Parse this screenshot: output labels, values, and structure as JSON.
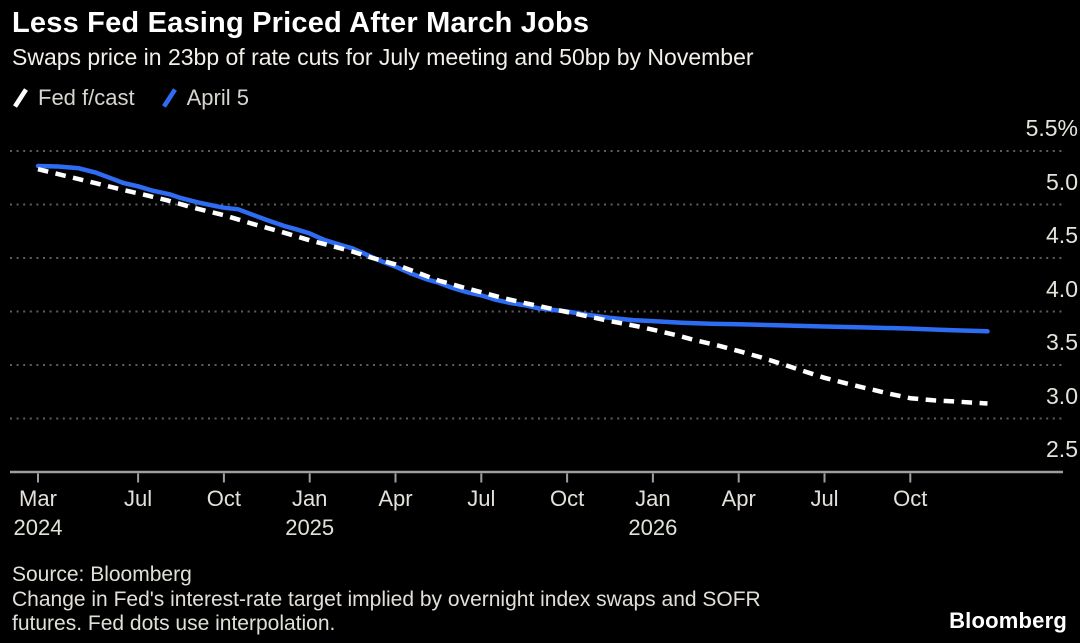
{
  "chart_data": {
    "type": "line",
    "title": "Less Fed Easing Priced After March Jobs",
    "subtitle": "Swaps price in 23bp of rate cuts for July meeting and 50bp by November",
    "legend_position": "top-left",
    "grid": "horizontal-dotted",
    "background": "#000000",
    "timeline": {
      "start": "mid-Mar 2024",
      "end": "Dec 2026",
      "t_unit": "months since mid-March 2024"
    },
    "x_axis": {
      "ticks": [
        {
          "label": "Mar",
          "year": "2024",
          "t": 0
        },
        {
          "label": "Jul",
          "t": 3.5
        },
        {
          "label": "Oct",
          "t": 6.5
        },
        {
          "label": "Jan",
          "year": "2025",
          "t": 9.5
        },
        {
          "label": "Apr",
          "t": 12.5
        },
        {
          "label": "Jul",
          "t": 15.5
        },
        {
          "label": "Oct",
          "t": 18.5
        },
        {
          "label": "Jan",
          "year": "2026",
          "t": 21.5
        },
        {
          "label": "Apr",
          "t": 24.5
        },
        {
          "label": "Jul",
          "t": 27.5
        },
        {
          "label": "Oct",
          "t": 30.5
        }
      ]
    },
    "y_axis": {
      "unit": "%",
      "range": [
        2.5,
        5.5
      ],
      "ticks": [
        {
          "label": "5.5%",
          "value": 5.5
        },
        {
          "label": "5.0",
          "value": 5.0
        },
        {
          "label": "4.5",
          "value": 4.5
        },
        {
          "label": "4.0",
          "value": 4.0
        },
        {
          "label": "3.5",
          "value": 3.5
        },
        {
          "label": "3.0",
          "value": 3.0
        },
        {
          "label": "2.5",
          "value": 2.5
        }
      ]
    },
    "series": [
      {
        "name": "Fed f/cast",
        "color": "#ffffff",
        "style": "dashed",
        "points": [
          [
            0,
            5.33
          ],
          [
            1,
            5.265
          ],
          [
            2,
            5.2
          ],
          [
            3,
            5.135
          ],
          [
            3.5,
            5.105
          ],
          [
            4.5,
            5.04
          ],
          [
            5.5,
            4.965
          ],
          [
            6.5,
            4.9
          ],
          [
            7.5,
            4.82
          ],
          [
            8.5,
            4.745
          ],
          [
            9.5,
            4.665
          ],
          [
            10.3,
            4.61
          ],
          [
            11,
            4.56
          ],
          [
            11.7,
            4.5
          ],
          [
            12.5,
            4.44
          ],
          [
            13.2,
            4.37
          ],
          [
            14,
            4.29
          ],
          [
            14.8,
            4.23
          ],
          [
            15.5,
            4.18
          ],
          [
            16.2,
            4.13
          ],
          [
            17,
            4.08
          ],
          [
            17.8,
            4.035
          ],
          [
            18.5,
            3.995
          ],
          [
            19.3,
            3.95
          ],
          [
            20,
            3.91
          ],
          [
            20.8,
            3.87
          ],
          [
            21.5,
            3.83
          ],
          [
            22.3,
            3.78
          ],
          [
            23,
            3.73
          ],
          [
            23.8,
            3.68
          ],
          [
            24.5,
            3.63
          ],
          [
            25.3,
            3.57
          ],
          [
            26,
            3.51
          ],
          [
            26.8,
            3.44
          ],
          [
            27.5,
            3.38
          ],
          [
            28.3,
            3.325
          ],
          [
            29,
            3.28
          ],
          [
            29.8,
            3.23
          ],
          [
            30.5,
            3.19
          ],
          [
            31.3,
            3.17
          ],
          [
            32,
            3.16
          ],
          [
            32.6,
            3.15
          ],
          [
            33.2,
            3.14
          ]
        ]
      },
      {
        "name": "April 5",
        "color": "#2e6cf2",
        "style": "solid",
        "points": [
          [
            0,
            5.36
          ],
          [
            0.7,
            5.355
          ],
          [
            1.4,
            5.34
          ],
          [
            2,
            5.3
          ],
          [
            2.6,
            5.24
          ],
          [
            3,
            5.2
          ],
          [
            3.5,
            5.17
          ],
          [
            4,
            5.13
          ],
          [
            4.6,
            5.095
          ],
          [
            5,
            5.06
          ],
          [
            5.6,
            5.02
          ],
          [
            6.2,
            4.985
          ],
          [
            6.5,
            4.97
          ],
          [
            7,
            4.955
          ],
          [
            7.5,
            4.905
          ],
          [
            8,
            4.855
          ],
          [
            8.6,
            4.8
          ],
          [
            9,
            4.77
          ],
          [
            9.5,
            4.73
          ],
          [
            10,
            4.67
          ],
          [
            10.6,
            4.62
          ],
          [
            11,
            4.59
          ],
          [
            11.5,
            4.53
          ],
          [
            12,
            4.47
          ],
          [
            12.5,
            4.42
          ],
          [
            13,
            4.36
          ],
          [
            13.6,
            4.3
          ],
          [
            14,
            4.27
          ],
          [
            14.5,
            4.22
          ],
          [
            15,
            4.18
          ],
          [
            15.5,
            4.15
          ],
          [
            16,
            4.11
          ],
          [
            16.5,
            4.08
          ],
          [
            17,
            4.06
          ],
          [
            17.5,
            4.03
          ],
          [
            18,
            4.015
          ],
          [
            18.5,
            4.0
          ],
          [
            19.2,
            3.97
          ],
          [
            20,
            3.94
          ],
          [
            20.8,
            3.92
          ],
          [
            21.5,
            3.91
          ],
          [
            22.5,
            3.895
          ],
          [
            23.5,
            3.885
          ],
          [
            24.5,
            3.88
          ],
          [
            26,
            3.87
          ],
          [
            27.5,
            3.86
          ],
          [
            29,
            3.85
          ],
          [
            30.5,
            3.84
          ],
          [
            32,
            3.825
          ],
          [
            33.2,
            3.815
          ]
        ]
      }
    ],
    "colors": {
      "gridline": "#5e5e5e",
      "axis": "#9e9e9e",
      "tick_label": "#e4e1da"
    }
  },
  "footer": {
    "source": "Source: Bloomberg",
    "note_lines": [
      "Change in Fed's interest-rate target implied by overnight index swaps and SOFR",
      "futures. Fed dots use interpolation."
    ],
    "logo": "Bloomberg"
  }
}
